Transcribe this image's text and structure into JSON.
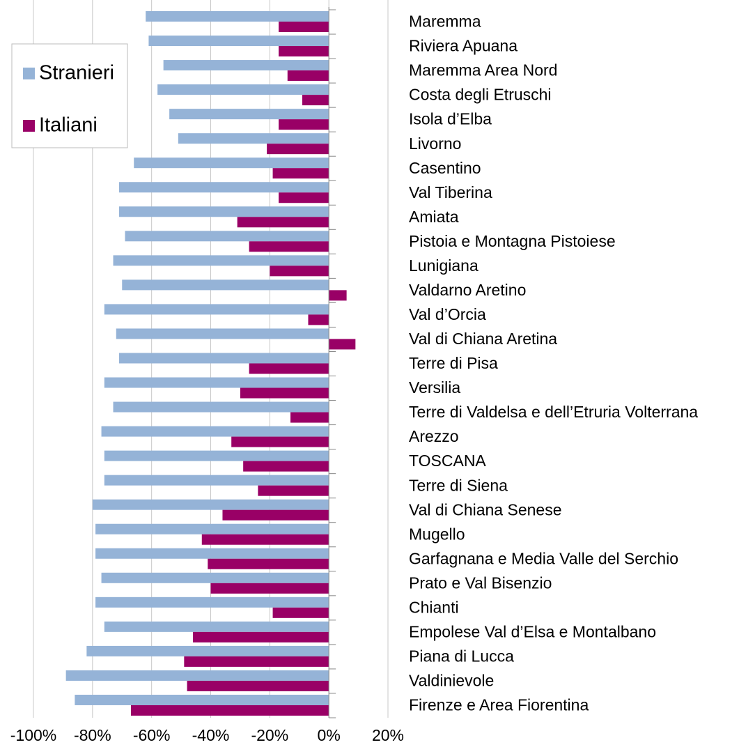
{
  "chart_data": {
    "type": "hbar",
    "categories": [
      "Maremma",
      "Riviera Apuana",
      "Maremma Area Nord",
      "Costa degli Etruschi",
      "Isola d’Elba",
      "Livorno",
      "Casentino",
      "Val Tiberina",
      "Amiata",
      "Pistoia e Montagna Pistoiese",
      "Lunigiana",
      "Valdarno Aretino",
      "Val d’Orcia",
      "Val di Chiana Aretina",
      "Terre di Pisa",
      "Versilia",
      "Terre di Valdelsa e dell’Etruria Volterrana",
      "Arezzo",
      "TOSCANA",
      "Terre di Siena",
      "Val di Chiana Senese",
      "Mugello",
      "Garfagnana e Media Valle del Serchio",
      "Prato e Val Bisenzio",
      "Chianti",
      "Empolese Val d’Elsa e Montalbano",
      "Piana di Lucca",
      "Valdinievole",
      "Firenze e Area Fiorentina"
    ],
    "series": [
      {
        "name": "Stranieri",
        "color": "#95b3d7",
        "values": [
          -62,
          -61,
          -56,
          -58,
          -54,
          -51,
          -66,
          -71,
          -71,
          -69,
          -73,
          -70,
          -76,
          -72,
          -71,
          -76,
          -73,
          -77,
          -76,
          -76,
          -80,
          -79,
          -79,
          -77,
          -79,
          -76,
          -82,
          -89,
          -86
        ]
      },
      {
        "name": "Italiani",
        "color": "#990066",
        "values": [
          -17,
          -17,
          -14,
          -9,
          -17,
          -21,
          -19,
          -17,
          -31,
          -27,
          -20,
          6,
          -7,
          9,
          -27,
          -30,
          -13,
          -33,
          -29,
          -24,
          -36,
          -43,
          -41,
          -40,
          -19,
          -46,
          -49,
          -48,
          -67
        ]
      }
    ],
    "xlim": [
      -100,
      20
    ],
    "xticks": [
      {
        "value": -100,
        "label": "-100%"
      },
      {
        "value": -80,
        "label": "-80%"
      },
      {
        "value": -60,
        "label": "-60%"
      },
      {
        "value": -40,
        "label": "-40%"
      },
      {
        "value": -20,
        "label": "-20%"
      },
      {
        "value": 0,
        "label": "0%"
      },
      {
        "value": 20,
        "label": "20%"
      }
    ],
    "grid": true,
    "legend": "top-left"
  }
}
